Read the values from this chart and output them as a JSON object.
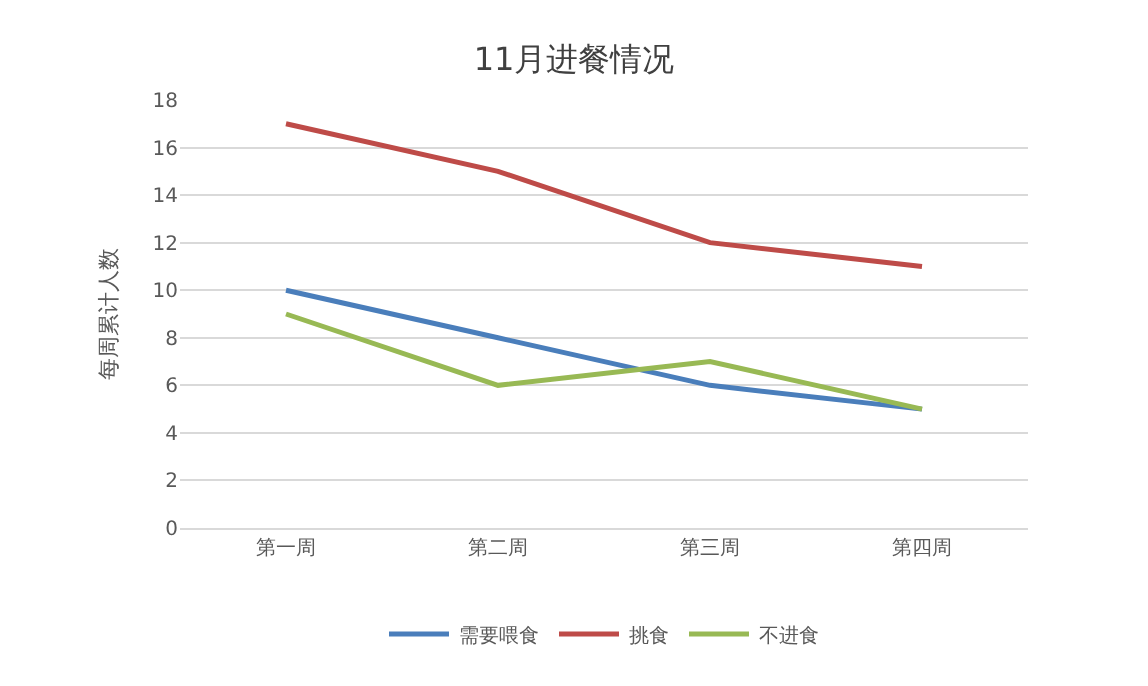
{
  "chart_data": {
    "type": "line",
    "title": "11月进餐情况",
    "ylabel": "每周累计人数",
    "categories": [
      "第一周",
      "第二周",
      "第三周",
      "第四周"
    ],
    "series": [
      {
        "name": "需要喂食",
        "color": "#4a7ebb",
        "values": [
          10,
          8,
          6,
          5
        ]
      },
      {
        "name": "挑食",
        "color": "#be4b48",
        "values": [
          17,
          15,
          12,
          11
        ]
      },
      {
        "name": "不进食",
        "color": "#98b954",
        "values": [
          9,
          6,
          7,
          5
        ]
      }
    ],
    "ylim": [
      0,
      18
    ],
    "yticks": [
      0,
      2,
      4,
      6,
      8,
      10,
      12,
      14,
      16,
      18
    ],
    "grid": "y",
    "legend": "bottom",
    "marker": "none",
    "line_style": "solid"
  }
}
